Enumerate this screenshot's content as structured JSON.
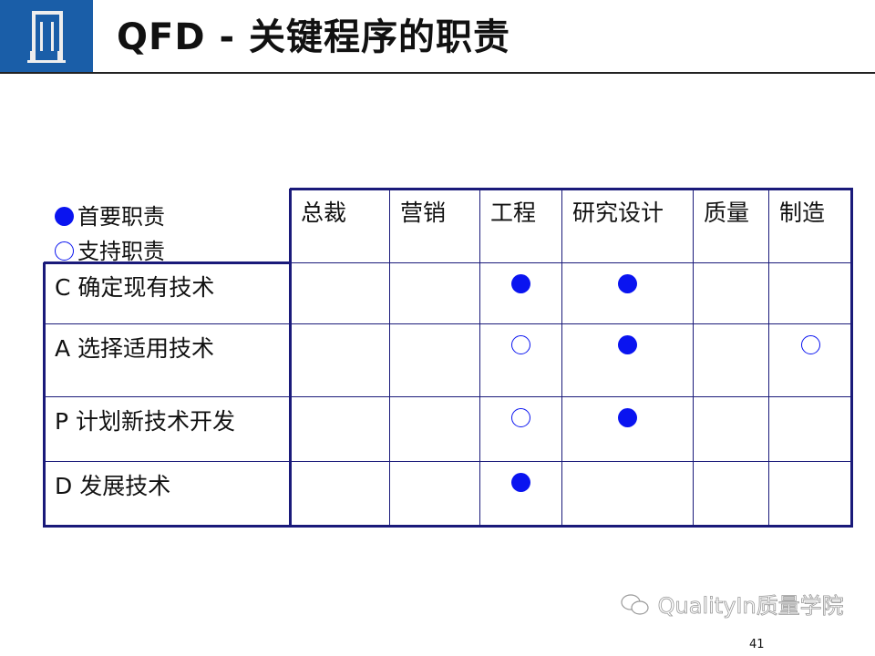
{
  "header": {
    "title": "QFD - 关键程序的职责",
    "logo": "building-logo"
  },
  "legend": [
    {
      "symbol": "filled-circle",
      "label": "首要职责"
    },
    {
      "symbol": "hollow-circle",
      "label": "支持职责"
    }
  ],
  "columns": [
    "总裁",
    "营销",
    "工程",
    "研究设计",
    "质量",
    "制造"
  ],
  "rows": [
    {
      "label": "C 确定现有技术",
      "marks": [
        "",
        "",
        "full",
        "full",
        "",
        ""
      ]
    },
    {
      "label": "A 选择适用技术",
      "marks": [
        "",
        "",
        "empty",
        "full",
        "",
        "empty"
      ]
    },
    {
      "label": "P 计划新技术开发",
      "marks": [
        "",
        "",
        "empty",
        "full",
        "",
        ""
      ]
    },
    {
      "label": "D 发展技术",
      "marks": [
        "",
        "",
        "full",
        "",
        "",
        ""
      ]
    }
  ],
  "colors": {
    "marker": "#0a14f0",
    "border": "#1a1a7a",
    "logo_bg": "#1a5ea8"
  },
  "watermark": "QualityIn质量学院",
  "page_number": "41"
}
